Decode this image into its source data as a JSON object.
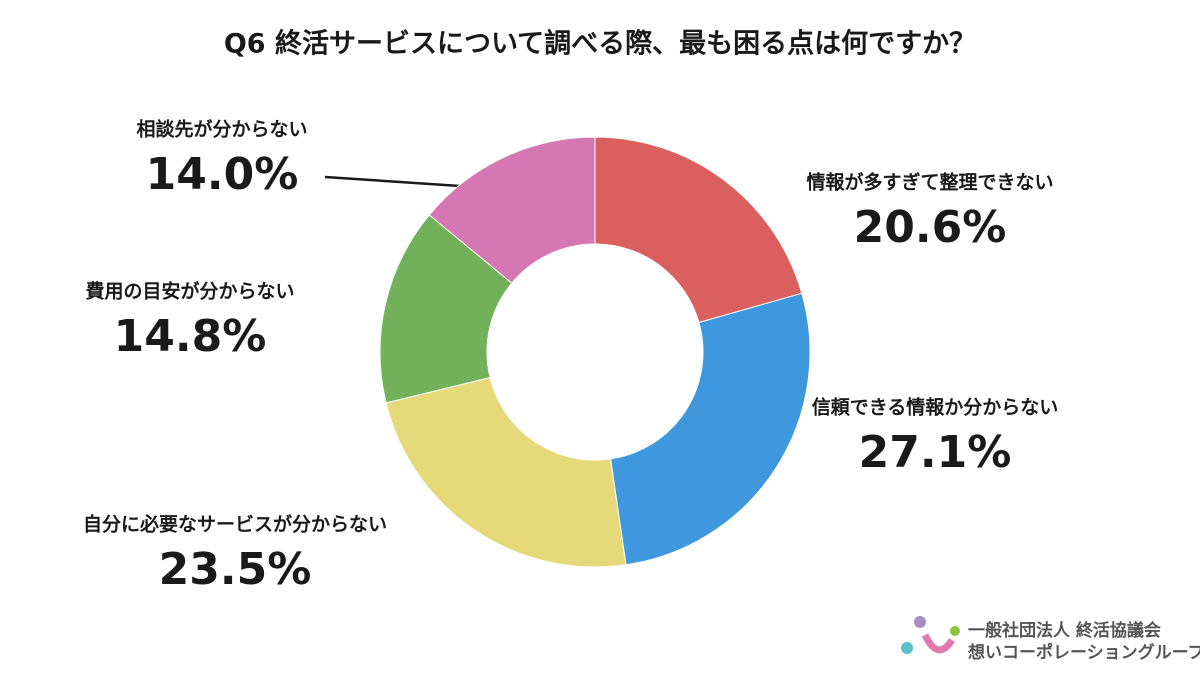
{
  "chart_data": {
    "type": "pie",
    "title": "Q6 終活サービスについて調べる際、最も困る点は何ですか？",
    "categories": [
      "情報が多すぎて整理できない",
      "信頼できる情報か分からない",
      "自分に必要なサービスが分からない",
      "費用の目安が分からない",
      "相談先が分からない"
    ],
    "values": [
      20.6,
      27.1,
      23.5,
      14.8,
      14.0
    ],
    "value_labels": [
      "20.6%",
      "27.1%",
      "23.5%",
      "14.8%",
      "14.0%"
    ],
    "colors": [
      "#d9605e",
      "#3f97dd",
      "#e5d97a",
      "#73b05a",
      "#d477b3"
    ]
  },
  "logo": {
    "organization": "一般社団法人 終活協議会",
    "group": "想いコーポレーショングループ"
  }
}
